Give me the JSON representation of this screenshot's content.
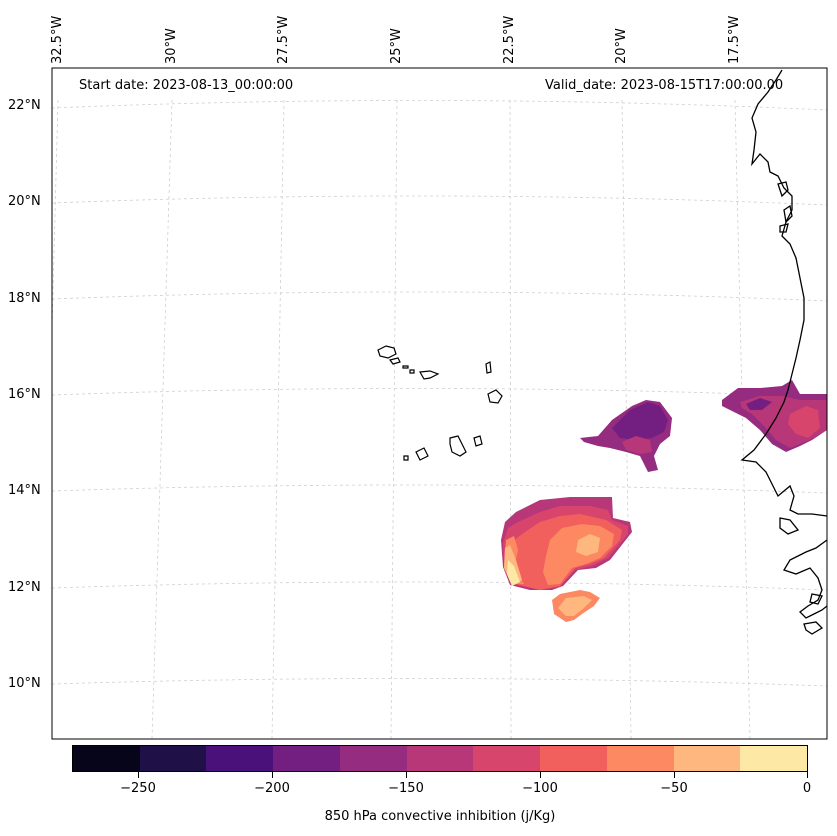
{
  "map": {
    "start_date_label": "Start date: 2023-08-13_00:00:00",
    "valid_date_label": "Valid_date: 2023-08-15T17:00:00.00",
    "longitude_labels": [
      "32.5°W",
      "30°W",
      "27.5°W",
      "25°W",
      "22.5°W",
      "20°W",
      "17.5°W"
    ],
    "latitude_labels": [
      "22°N",
      "20°N",
      "18°N",
      "16°N",
      "14°N",
      "12°N",
      "10°N"
    ]
  },
  "colorbar": {
    "title": "850 hPa convective inhibition (j/Kg)",
    "tick_labels": [
      "−250",
      "−200",
      "−150",
      "−100",
      "−50",
      "0"
    ],
    "levels": [
      -275,
      -250,
      -225,
      -200,
      -175,
      -150,
      -125,
      -100,
      -75,
      -50,
      -25,
      0
    ],
    "colors": [
      "#06051a",
      "#1f1147",
      "#4b117a",
      "#721f81",
      "#962c80",
      "#b73779",
      "#d8456c",
      "#f1605d",
      "#fc8961",
      "#feb77e",
      "#fde8a5"
    ]
  },
  "fields": {
    "coastline_color": "#000000",
    "gridline_color": "#d0d0d0"
  }
}
